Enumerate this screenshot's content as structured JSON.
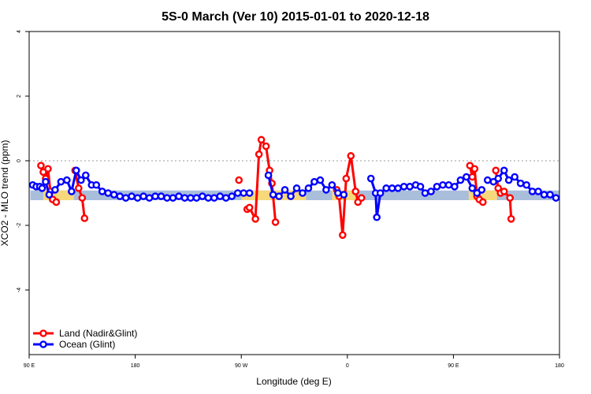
{
  "chart_data": {
    "type": "line",
    "title": "5S-0 March (Ver 10)   2015-01-01 to 2020-12-18",
    "xlabel": "Longitude (deg E)",
    "ylabel": "XCO2 - MLO trend (ppm)",
    "xlim": [
      90,
      540
    ],
    "ylim": [
      -6,
      4
    ],
    "x_ticks": [
      {
        "value": 90,
        "label": "90 E"
      },
      {
        "value": 180,
        "label": "180"
      },
      {
        "value": 270,
        "label": "90 W"
      },
      {
        "value": 360,
        "label": "0"
      },
      {
        "value": 450,
        "label": "90 E"
      },
      {
        "value": 540,
        "label": "180"
      }
    ],
    "y_ticks": [
      {
        "value": 4,
        "label": "4"
      },
      {
        "value": 2,
        "label": "2"
      },
      {
        "value": 0,
        "label": "0"
      },
      {
        "value": -2,
        "label": "-2"
      },
      {
        "value": -4,
        "label": "-4"
      }
    ],
    "band": {
      "ymin": -1.22,
      "ymax": -0.92,
      "ocean_color": "#a9bedb",
      "land_color": "#f7d87a",
      "land_ranges": [
        [
          102,
          128
        ],
        [
          270,
          325
        ],
        [
          347,
          368
        ],
        [
          463,
          487
        ]
      ]
    },
    "legend": {
      "position": "bottom-left"
    },
    "series": [
      {
        "name": "Land (Nadir&Glint)",
        "color": "#ff0000",
        "segments": [
          {
            "x": [
              100,
              102,
              104,
              106,
              108,
              110,
              113
            ],
            "y": [
              -0.15,
              -0.35,
              -0.55,
              -0.25,
              -0.95,
              -1.2,
              -1.28
            ]
          },
          {
            "x": [
              129,
              132,
              135,
              137
            ],
            "y": [
              -0.3,
              -0.85,
              -1.15,
              -1.78
            ]
          },
          {
            "x": [
              268
            ],
            "y": [
              -0.6
            ]
          },
          {
            "x": [
              275,
              277,
              282,
              285,
              287,
              291,
              294,
              296,
              299
            ],
            "y": [
              -1.5,
              -1.45,
              -1.8,
              0.2,
              0.65,
              0.45,
              -0.3,
              -0.7,
              -1.9
            ]
          },
          {
            "x": [
              351,
              353,
              356,
              359,
              363,
              367,
              369,
              372
            ],
            "y": [
              -0.9,
              -1.1,
              -2.3,
              -0.55,
              0.15,
              -0.95,
              -1.28,
              -1.15
            ]
          },
          {
            "x": [
              464,
              466,
              468,
              470,
              472,
              475
            ],
            "y": [
              -0.15,
              -0.5,
              -0.25,
              -1.1,
              -1.2,
              -1.28
            ]
          },
          {
            "x": [
              486,
              488,
              490,
              493,
              498,
              499
            ],
            "y": [
              -0.3,
              -0.85,
              -1.0,
              -0.95,
              -1.15,
              -1.8
            ]
          }
        ]
      },
      {
        "name": "Ocean (Glint)",
        "color": "#0000ff",
        "segments": [
          {
            "x": [
              93,
              96,
              99,
              101,
              104,
              107,
              112,
              117,
              122,
              126,
              130,
              134,
              138,
              143,
              147,
              152,
              157,
              162,
              167,
              172,
              177,
              182,
              187,
              192,
              197,
              202,
              207,
              212,
              217,
              222,
              227,
              232,
              237,
              242,
              247,
              252,
              257,
              262,
              267,
              272,
              277
            ],
            "y": [
              -0.75,
              -0.8,
              -0.8,
              -0.85,
              -0.65,
              -1.05,
              -0.9,
              -0.65,
              -0.6,
              -0.95,
              -0.3,
              -0.6,
              -0.45,
              -0.75,
              -0.75,
              -0.95,
              -1.0,
              -1.05,
              -1.1,
              -1.15,
              -1.1,
              -1.15,
              -1.1,
              -1.15,
              -1.1,
              -1.1,
              -1.15,
              -1.15,
              -1.1,
              -1.15,
              -1.15,
              -1.15,
              -1.1,
              -1.15,
              -1.15,
              -1.1,
              -1.15,
              -1.1,
              -1.0,
              -1.0,
              -1.0
            ]
          },
          {
            "x": [
              293,
              297,
              302,
              307,
              312,
              317,
              322,
              327,
              332,
              337,
              342,
              347,
              352,
              357
            ],
            "y": [
              -0.45,
              -1.05,
              -1.1,
              -0.9,
              -1.1,
              -0.85,
              -1.0,
              -0.85,
              -0.65,
              -0.6,
              -0.9,
              -0.75,
              -1.0,
              -1.05
            ]
          },
          {
            "x": [
              380,
              384,
              385,
              388,
              393,
              398,
              403,
              408,
              413,
              418,
              422,
              426,
              431,
              436,
              441,
              446,
              451,
              456,
              461,
              466,
              470,
              474
            ],
            "y": [
              -0.55,
              -1.0,
              -1.75,
              -1.0,
              -0.85,
              -0.85,
              -0.85,
              -0.8,
              -0.8,
              -0.75,
              -0.8,
              -1.0,
              -0.95,
              -0.8,
              -0.75,
              -0.75,
              -0.8,
              -0.6,
              -0.5,
              -0.85,
              -1.0,
              -0.9
            ]
          },
          {
            "x": [
              479,
              484,
              488,
              493,
              497,
              502,
              507,
              512,
              517,
              522,
              527,
              532,
              537
            ],
            "y": [
              -0.6,
              -0.65,
              -0.55,
              -0.3,
              -0.6,
              -0.5,
              -0.7,
              -0.75,
              -0.95,
              -0.95,
              -1.05,
              -1.05,
              -1.15
            ]
          }
        ]
      }
    ]
  }
}
